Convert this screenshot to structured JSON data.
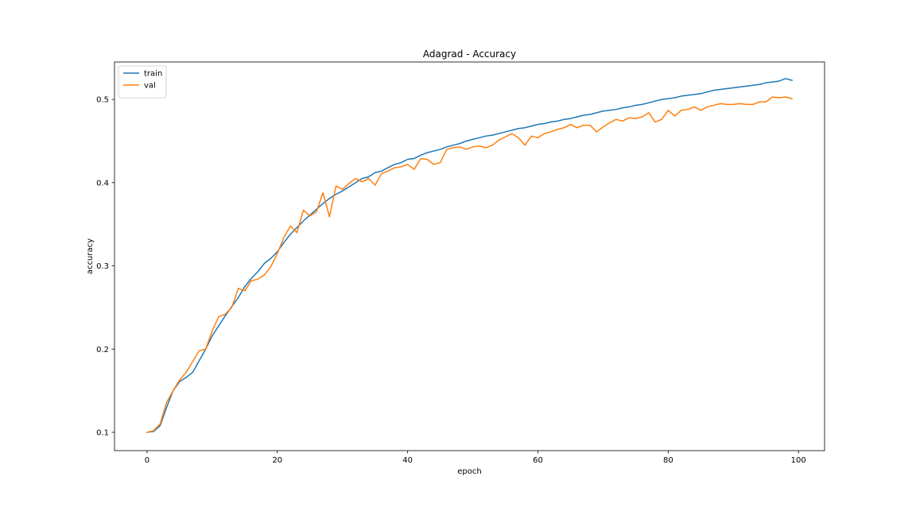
{
  "chart_data": {
    "type": "line",
    "title": "Adagrad - Accuracy",
    "xlabel": "epoch",
    "ylabel": "accuracy",
    "xlim": [
      -5,
      104
    ],
    "ylim": [
      0.078,
      0.545
    ],
    "xticks": [
      0,
      20,
      40,
      60,
      80,
      100
    ],
    "yticks": [
      0.1,
      0.2,
      0.3,
      0.4,
      0.5
    ],
    "grid": false,
    "legend_position": "upper-left",
    "series": [
      {
        "name": "train",
        "color": "#1f77b4",
        "x": [
          0,
          1,
          2,
          3,
          4,
          5,
          6,
          7,
          8,
          9,
          10,
          11,
          12,
          13,
          14,
          15,
          16,
          17,
          18,
          19,
          20,
          21,
          22,
          23,
          24,
          25,
          26,
          27,
          28,
          29,
          30,
          31,
          32,
          33,
          34,
          35,
          36,
          37,
          38,
          39,
          40,
          41,
          42,
          43,
          44,
          45,
          46,
          47,
          48,
          49,
          50,
          51,
          52,
          53,
          54,
          55,
          56,
          57,
          58,
          59,
          60,
          61,
          62,
          63,
          64,
          65,
          66,
          67,
          68,
          69,
          70,
          71,
          72,
          73,
          74,
          75,
          76,
          77,
          78,
          79,
          80,
          81,
          82,
          83,
          84,
          85,
          86,
          87,
          88,
          89,
          90,
          91,
          92,
          93,
          94,
          95,
          96,
          97,
          98,
          99
        ],
        "values": [
          0.1,
          0.101,
          0.108,
          0.13,
          0.15,
          0.161,
          0.166,
          0.172,
          0.186,
          0.2,
          0.216,
          0.228,
          0.24,
          0.251,
          0.262,
          0.275,
          0.285,
          0.293,
          0.303,
          0.309,
          0.317,
          0.328,
          0.338,
          0.346,
          0.354,
          0.361,
          0.368,
          0.375,
          0.381,
          0.386,
          0.39,
          0.395,
          0.4,
          0.405,
          0.407,
          0.412,
          0.414,
          0.418,
          0.422,
          0.424,
          0.428,
          0.429,
          0.433,
          0.436,
          0.438,
          0.44,
          0.443,
          0.445,
          0.447,
          0.45,
          0.452,
          0.454,
          0.456,
          0.457,
          0.459,
          0.461,
          0.463,
          0.465,
          0.466,
          0.468,
          0.47,
          0.471,
          0.473,
          0.474,
          0.476,
          0.477,
          0.479,
          0.481,
          0.482,
          0.484,
          0.486,
          0.487,
          0.488,
          0.49,
          0.491,
          0.493,
          0.494,
          0.496,
          0.498,
          0.5,
          0.501,
          0.502,
          0.504,
          0.505,
          0.506,
          0.507,
          0.509,
          0.511,
          0.512,
          0.513,
          0.514,
          0.515,
          0.516,
          0.517,
          0.518,
          0.52,
          0.521,
          0.522,
          0.525,
          0.523
        ]
      },
      {
        "name": "val",
        "color": "#ff7f0e",
        "x": [
          0,
          1,
          2,
          3,
          4,
          5,
          6,
          7,
          8,
          9,
          10,
          11,
          12,
          13,
          14,
          15,
          16,
          17,
          18,
          19,
          20,
          21,
          22,
          23,
          24,
          25,
          26,
          27,
          28,
          29,
          30,
          31,
          32,
          33,
          34,
          35,
          36,
          37,
          38,
          39,
          40,
          41,
          42,
          43,
          44,
          45,
          46,
          47,
          48,
          49,
          50,
          51,
          52,
          53,
          54,
          55,
          56,
          57,
          58,
          59,
          60,
          61,
          62,
          63,
          64,
          65,
          66,
          67,
          68,
          69,
          70,
          71,
          72,
          73,
          74,
          75,
          76,
          77,
          78,
          79,
          80,
          81,
          82,
          83,
          84,
          85,
          86,
          87,
          88,
          89,
          90,
          91,
          92,
          93,
          94,
          95,
          96,
          97,
          98,
          99
        ],
        "values": [
          0.1,
          0.102,
          0.11,
          0.136,
          0.15,
          0.163,
          0.172,
          0.185,
          0.198,
          0.2,
          0.222,
          0.239,
          0.242,
          0.25,
          0.273,
          0.27,
          0.282,
          0.284,
          0.289,
          0.299,
          0.315,
          0.334,
          0.348,
          0.34,
          0.367,
          0.36,
          0.365,
          0.388,
          0.359,
          0.396,
          0.392,
          0.399,
          0.405,
          0.401,
          0.405,
          0.397,
          0.411,
          0.414,
          0.418,
          0.419,
          0.422,
          0.416,
          0.429,
          0.428,
          0.422,
          0.424,
          0.44,
          0.442,
          0.443,
          0.44,
          0.443,
          0.444,
          0.442,
          0.445,
          0.451,
          0.455,
          0.459,
          0.454,
          0.445,
          0.456,
          0.454,
          0.459,
          0.461,
          0.464,
          0.466,
          0.47,
          0.466,
          0.469,
          0.469,
          0.461,
          0.467,
          0.472,
          0.476,
          0.474,
          0.478,
          0.477,
          0.479,
          0.484,
          0.473,
          0.476,
          0.487,
          0.48,
          0.487,
          0.488,
          0.491,
          0.487,
          0.491,
          0.493,
          0.495,
          0.494,
          0.494,
          0.495,
          0.494,
          0.494,
          0.497,
          0.497,
          0.503,
          0.502,
          0.503,
          0.501
        ]
      }
    ]
  }
}
